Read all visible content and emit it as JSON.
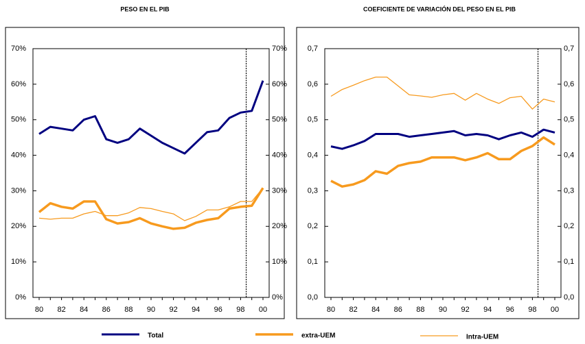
{
  "chart_data": [
    {
      "type": "line",
      "title": "PESO EN EL PIB",
      "categories": [
        "80",
        null,
        "82",
        null,
        "84",
        null,
        "86",
        null,
        "88",
        null,
        "90",
        null,
        "92",
        null,
        "94",
        null,
        "96",
        null,
        "98",
        null,
        "00"
      ],
      "ylim": [
        0,
        70
      ],
      "yticks": [
        {
          "value": 0,
          "label": "0%"
        },
        {
          "value": 10,
          "label": "10%"
        },
        {
          "value": 20,
          "label": "20%"
        },
        {
          "value": 30,
          "label": "30%"
        },
        {
          "value": 40,
          "label": "40%"
        },
        {
          "value": 50,
          "label": "50%"
        },
        {
          "value": 60,
          "label": "60%"
        },
        {
          "value": 70,
          "label": "70%"
        }
      ],
      "series": [
        {
          "name": "Total",
          "color": "#000080",
          "width": 3,
          "values": [
            46,
            48,
            47.5,
            47,
            50,
            51,
            44.5,
            43.5,
            44.5,
            47.5,
            45.5,
            43.5,
            42,
            40.5,
            43.5,
            46.5,
            47,
            50.5,
            52,
            52.5,
            61
          ]
        },
        {
          "name": "extra-UEM",
          "color": "#f79a1e",
          "width": 3.5,
          "values": [
            24,
            26.5,
            25.5,
            25,
            27,
            27,
            22,
            20.8,
            21.2,
            22.3,
            20.8,
            20,
            19.3,
            19.6,
            21,
            21.8,
            22.3,
            25,
            25.5,
            25.8,
            30.8
          ]
        },
        {
          "name": "Intra-UEM",
          "color": "#f79a1e",
          "width": 1.3,
          "values": [
            22.3,
            22,
            22.3,
            22.3,
            23.5,
            24.2,
            23,
            23,
            23.8,
            25.3,
            25,
            24.2,
            23.5,
            21.6,
            22.8,
            24.6,
            24.6,
            25.5,
            27,
            27,
            30.8
          ]
        }
      ]
    },
    {
      "type": "line",
      "title": "COEFICIENTE DE VARIACIÓN DEL PESO EN EL PIB",
      "categories": [
        "80",
        null,
        "82",
        null,
        "84",
        null,
        "86",
        null,
        "88",
        null,
        "90",
        null,
        "92",
        null,
        "94",
        null,
        "96",
        null,
        "98",
        null,
        "00"
      ],
      "ylim": [
        0,
        0.7
      ],
      "yticks": [
        {
          "value": 0,
          "label": "0,0"
        },
        {
          "value": 0.1,
          "label": "0,1"
        },
        {
          "value": 0.2,
          "label": "0,2"
        },
        {
          "value": 0.3,
          "label": "0,3"
        },
        {
          "value": 0.4,
          "label": "0,4"
        },
        {
          "value": 0.5,
          "label": "0,5"
        },
        {
          "value": 0.6,
          "label": "0,6"
        },
        {
          "value": 0.7,
          "label": "0,7"
        }
      ],
      "series": [
        {
          "color": "#000080",
          "width": 3,
          "values": [
            0.425,
            0.418,
            0.428,
            0.44,
            0.46,
            0.46,
            0.46,
            0.452,
            0.456,
            0.46,
            0.464,
            0.468,
            0.456,
            0.46,
            0.456,
            0.445,
            0.456,
            0.464,
            0.452,
            0.472,
            0.464
          ]
        },
        {
          "color": "#f79a1e",
          "width": 3.5,
          "values": [
            0.328,
            0.312,
            0.318,
            0.33,
            0.355,
            0.348,
            0.37,
            0.378,
            0.382,
            0.394,
            0.394,
            0.394,
            0.386,
            0.394,
            0.406,
            0.389,
            0.389,
            0.412,
            0.426,
            0.45,
            0.43
          ]
        },
        {
          "color": "#f79a1e",
          "width": 1.3,
          "values": [
            0.566,
            0.585,
            0.597,
            0.61,
            0.62,
            0.62,
            0.595,
            0.57,
            0.567,
            0.563,
            0.57,
            0.574,
            0.555,
            0.574,
            0.558,
            0.546,
            0.562,
            0.566,
            0.53,
            0.558,
            0.55
          ]
        }
      ]
    }
  ]
}
